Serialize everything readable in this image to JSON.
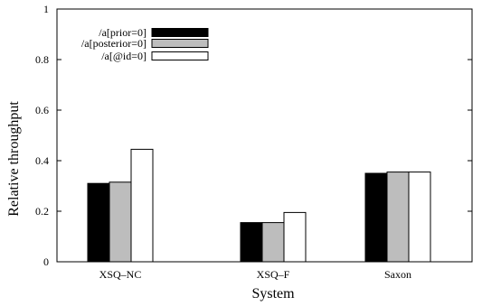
{
  "chart_data": {
    "type": "bar",
    "title": "",
    "xlabel": "System",
    "ylabel": "Relative throughput",
    "ylim": [
      0,
      1
    ],
    "yticks": [
      "0",
      "0.2",
      "0.4",
      "0.6",
      "0.8",
      "1"
    ],
    "categories": [
      "XSQ–NC",
      "XSQ–F",
      "Saxon"
    ],
    "series": [
      {
        "name": "/a[prior=0]",
        "color": "#000000",
        "values": [
          0.31,
          0.155,
          0.35
        ]
      },
      {
        "name": "/a[posterior=0]",
        "color": "#bdbdbd",
        "values": [
          0.315,
          0.155,
          0.355
        ]
      },
      {
        "name": "/a[@id=0]",
        "color": "#ffffff",
        "values": [
          0.445,
          0.195,
          0.355
        ]
      }
    ],
    "legend_position": "top-left",
    "grid": false
  }
}
